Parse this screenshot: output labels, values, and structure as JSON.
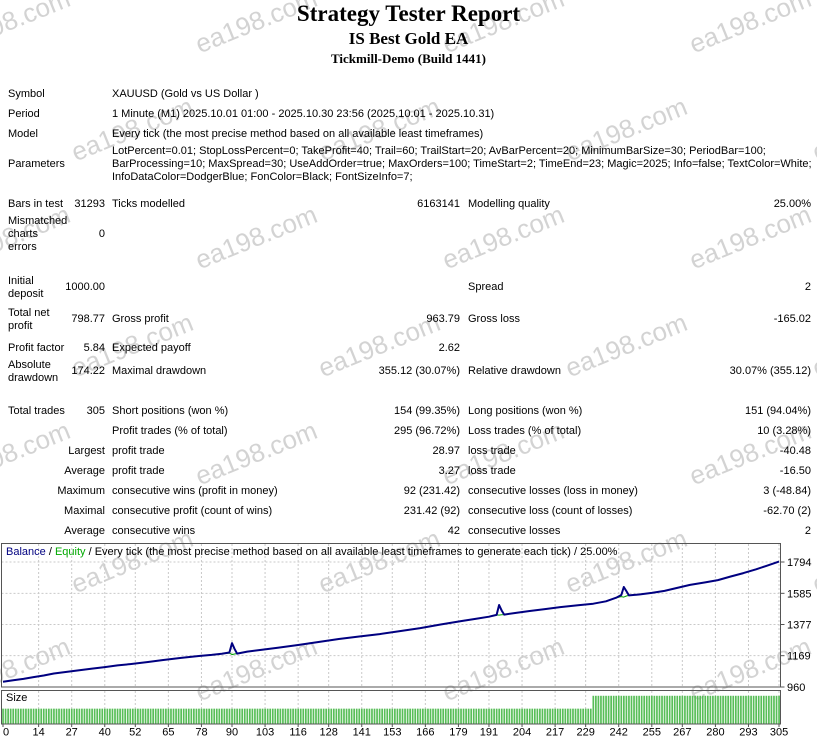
{
  "page": {
    "watermark_text": "ea198.com"
  },
  "header": {
    "title": "Strategy Tester Report",
    "ea_name": "IS Best Gold EA",
    "server_build": "Tickmill-Demo (Build 1441)"
  },
  "stats": {
    "rows": [
      {
        "c1": "Symbol",
        "c3": "XAUUSD (Gold vs US Dollar )"
      },
      {
        "c1": "Period",
        "c3": "1 Minute (M1) 2025.10.01 01:00 - 2025.10.30 23:56 (2025.10.01 - 2025.10.31)"
      },
      {
        "c1": "Model",
        "c3": "Every tick (the most precise method based on all available least timeframes)"
      },
      {
        "c1": "Parameters",
        "c3": [
          "LotPercent=0.01; StopLossPercent=0; TakeProfit=40; Trail=60; TrailStart=20; AvBarPercent=20; MinimumBarSize=30; PeriodBar=100;",
          "BarProcessing=10; MaxSpread=30; UseAddOrder=true; MaxOrders=100; TimeStart=2; TimeEnd=23; Magic=2025; Info=false; TextColor=White;",
          "InfoDataColor=DodgerBlue; FonColor=Black; FontSizeInfo=7;"
        ]
      },
      {
        "c1": "Bars in test",
        "c2": "31293",
        "c3": "Ticks modelled",
        "c4": "6163141",
        "c5": "Modelling quality",
        "c6": "25.00%"
      },
      {
        "c1": [
          "Mismatched",
          "charts",
          "errors"
        ],
        "c2": "0"
      },
      {
        "c1": [
          "Initial",
          "deposit"
        ],
        "c2": "1000.00",
        "c5": "Spread",
        "c6": "2"
      },
      {
        "c1": [
          "Total net",
          "profit"
        ],
        "c2": "798.77",
        "c3": "Gross profit",
        "c4": "963.79",
        "c5": "Gross loss",
        "c6": "-165.02"
      },
      {
        "c1": "Profit factor",
        "c2": "5.84",
        "c3": "Expected payoff",
        "c4": "2.62"
      },
      {
        "c1": [
          "Absolute",
          "drawdown"
        ],
        "c2": "174.22",
        "c3": "Maximal drawdown",
        "c4": "355.12 (30.07%)",
        "c5": "Relative drawdown",
        "c6": "30.07% (355.12)"
      },
      {
        "c1": "Total trades",
        "c2": "305",
        "c3": "Short positions (won %)",
        "c4": "154 (99.35%)",
        "c5": "Long positions (won %)",
        "c6": "151 (94.04%)"
      },
      {
        "c3": "Profit trades (% of total)",
        "c4": "295 (96.72%)",
        "c5": "Loss trades (% of total)",
        "c6": "10 (3.28%)"
      },
      {
        "c2": "Largest",
        "c3": "profit trade",
        "c4": "28.97",
        "c5": "loss trade",
        "c6": "-40.48"
      },
      {
        "c2": "Average",
        "c3": "profit trade",
        "c4": "3.27",
        "c5": "loss trade",
        "c6": "-16.50"
      },
      {
        "c2": "Maximum",
        "c3": "consecutive wins (profit in money)",
        "c4": "92 (231.42)",
        "c5": "consecutive losses (loss in money)",
        "c6": "3 (-48.84)"
      },
      {
        "c2": "Maximal",
        "c3": "consecutive profit (count of wins)",
        "c4": "231.42 (92)",
        "c5": "consecutive loss (count of losses)",
        "c6": "-62.70 (2)"
      },
      {
        "c2": "Average",
        "c3": "consecutive wins",
        "c4": "42",
        "c5": "consecutive losses",
        "c6": "2"
      }
    ]
  },
  "chart_data": [
    {
      "type": "line",
      "legend": {
        "balance_label": "Balance",
        "equity_label": "Equity",
        "separator": " / ",
        "model_note": "Every tick (the most precise method based on all available least timeframes to generate each tick)",
        "quality": "25.00%",
        "balance_color": "#000080",
        "equity_color": "#00A800"
      },
      "x_ticks": [
        0,
        14,
        27,
        40,
        52,
        65,
        78,
        90,
        103,
        116,
        128,
        141,
        153,
        166,
        179,
        191,
        204,
        217,
        229,
        242,
        255,
        267,
        280,
        293,
        305
      ],
      "y_ticks": [
        1794,
        1585,
        1377,
        1169,
        960
      ],
      "xlim": [
        0,
        305
      ],
      "ylim": [
        960,
        1920
      ],
      "grid": true,
      "series": [
        {
          "name": "Equity",
          "color": "#00A000",
          "width": 1,
          "points": [
            [
              0,
              995
            ],
            [
              4,
              1005
            ],
            [
              8,
              1014
            ],
            [
              12,
              1026
            ],
            [
              16,
              1037
            ],
            [
              20,
              1050
            ],
            [
              25,
              1061
            ],
            [
              30,
              1072
            ],
            [
              35,
              1083
            ],
            [
              40,
              1093
            ],
            [
              45,
              1104
            ],
            [
              50,
              1113
            ],
            [
              57,
              1127
            ],
            [
              63,
              1140
            ],
            [
              70,
              1154
            ],
            [
              77,
              1167
            ],
            [
              82,
              1174
            ],
            [
              86,
              1182
            ],
            [
              89,
              1186
            ],
            [
              90,
              1176
            ],
            [
              91,
              1180
            ],
            [
              92,
              1183
            ],
            [
              96,
              1196
            ],
            [
              101,
              1207
            ],
            [
              108,
              1222
            ],
            [
              116,
              1240
            ],
            [
              124,
              1260
            ],
            [
              132,
              1280
            ],
            [
              140,
              1297
            ],
            [
              148,
              1313
            ],
            [
              156,
              1333
            ],
            [
              164,
              1353
            ],
            [
              172,
              1377
            ],
            [
              180,
              1400
            ],
            [
              186,
              1415
            ],
            [
              191,
              1429
            ],
            [
              194,
              1441
            ],
            [
              195,
              1440
            ],
            [
              196,
              1442
            ],
            [
              197,
              1443
            ],
            [
              202,
              1456
            ],
            [
              207,
              1467
            ],
            [
              213,
              1480
            ],
            [
              219,
              1493
            ],
            [
              226,
              1505
            ],
            [
              232,
              1516
            ],
            [
              237,
              1532
            ],
            [
              241,
              1556
            ],
            [
              243,
              1563
            ],
            [
              244,
              1560
            ],
            [
              245,
              1567
            ],
            [
              246,
              1571
            ],
            [
              250,
              1577
            ],
            [
              255,
              1588
            ],
            [
              260,
              1601
            ],
            [
              265,
              1621
            ],
            [
              270,
              1641
            ],
            [
              276,
              1658
            ],
            [
              281,
              1673
            ],
            [
              286,
              1697
            ],
            [
              291,
              1720
            ],
            [
              296,
              1745
            ],
            [
              300,
              1768
            ],
            [
              305,
              1797
            ]
          ]
        },
        {
          "name": "Balance",
          "color": "#000080",
          "width": 2,
          "points": [
            [
              0,
              995
            ],
            [
              4,
              1005
            ],
            [
              8,
              1014
            ],
            [
              12,
              1026
            ],
            [
              16,
              1037
            ],
            [
              20,
              1050
            ],
            [
              25,
              1061
            ],
            [
              30,
              1072
            ],
            [
              35,
              1083
            ],
            [
              40,
              1093
            ],
            [
              45,
              1104
            ],
            [
              50,
              1113
            ],
            [
              57,
              1127
            ],
            [
              63,
              1140
            ],
            [
              70,
              1154
            ],
            [
              77,
              1167
            ],
            [
              82,
              1174
            ],
            [
              86,
              1182
            ],
            [
              89,
              1190
            ],
            [
              90,
              1253
            ],
            [
              91,
              1215
            ],
            [
              92,
              1183
            ],
            [
              96,
              1196
            ],
            [
              101,
              1207
            ],
            [
              108,
              1222
            ],
            [
              116,
              1240
            ],
            [
              124,
              1260
            ],
            [
              132,
              1280
            ],
            [
              140,
              1297
            ],
            [
              148,
              1313
            ],
            [
              156,
              1333
            ],
            [
              164,
              1353
            ],
            [
              172,
              1377
            ],
            [
              180,
              1400
            ],
            [
              186,
              1415
            ],
            [
              191,
              1429
            ],
            [
              194,
              1441
            ],
            [
              195,
              1507
            ],
            [
              196,
              1470
            ],
            [
              197,
              1443
            ],
            [
              202,
              1456
            ],
            [
              207,
              1467
            ],
            [
              213,
              1480
            ],
            [
              219,
              1493
            ],
            [
              226,
              1505
            ],
            [
              232,
              1516
            ],
            [
              237,
              1532
            ],
            [
              241,
              1556
            ],
            [
              243,
              1574
            ],
            [
              244,
              1627
            ],
            [
              245,
              1600
            ],
            [
              246,
              1571
            ],
            [
              250,
              1577
            ],
            [
              255,
              1588
            ],
            [
              260,
              1601
            ],
            [
              265,
              1621
            ],
            [
              270,
              1641
            ],
            [
              276,
              1658
            ],
            [
              281,
              1673
            ],
            [
              286,
              1697
            ],
            [
              291,
              1720
            ],
            [
              296,
              1745
            ],
            [
              300,
              1768
            ],
            [
              305,
              1797
            ]
          ]
        }
      ]
    },
    {
      "type": "bar",
      "title": "Size",
      "bar_color": "#58BE58",
      "x_range": [
        0,
        305
      ],
      "segments": [
        {
          "from": 0,
          "to": 231,
          "height": 0.45
        },
        {
          "from": 232,
          "to": 305,
          "height": 0.84
        }
      ]
    }
  ]
}
